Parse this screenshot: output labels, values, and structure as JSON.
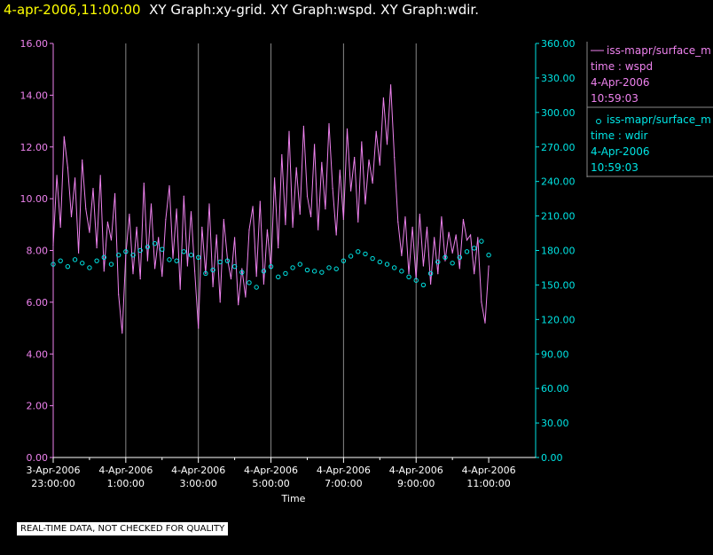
{
  "header": {
    "timestamp": "4-apr-2006,11:00:00",
    "graph_titles": "XY Graph:xy-grid.  XY Graph:wspd.  XY Graph:wdir."
  },
  "notice": "REAL-TIME DATA, NOT CHECKED FOR QUALITY",
  "colors": {
    "wspd": "#ee82ee",
    "wdir": "#00e5e5",
    "grid": "#ffffff",
    "axis_left": "#ee82ee",
    "axis_right": "#00e5e5"
  },
  "legend": [
    {
      "symbol": "line",
      "source": "iss-mapr/surface_m",
      "var": "time : wspd",
      "date": "4-Apr-2006",
      "time": "10:59:03",
      "color": "#ee82ee"
    },
    {
      "symbol": "circle",
      "source": "iss-mapr/surface_m",
      "var": "time : wdir",
      "date": "4-Apr-2006",
      "time": "10:59:03",
      "color": "#00e5e5"
    }
  ],
  "chart_data": {
    "type": "line",
    "xlabel": "Time",
    "x_range_hours": [
      -1,
      12
    ],
    "x_ticks": [
      {
        "h": -1,
        "l1": "3-Apr-2006",
        "l2": "23:00:00"
      },
      {
        "h": 1,
        "l1": "4-Apr-2006",
        "l2": "1:00:00"
      },
      {
        "h": 3,
        "l1": "4-Apr-2006",
        "l2": "3:00:00"
      },
      {
        "h": 5,
        "l1": "4-Apr-2006",
        "l2": "5:00:00"
      },
      {
        "h": 7,
        "l1": "4-Apr-2006",
        "l2": "7:00:00"
      },
      {
        "h": 9,
        "l1": "4-Apr-2006",
        "l2": "9:00:00"
      },
      {
        "h": 11,
        "l1": "4-Apr-2006",
        "l2": "11:00:00"
      }
    ],
    "left_axis": {
      "ylim": [
        0,
        16
      ],
      "ticks": [
        "0.00",
        "2.00",
        "4.00",
        "6.00",
        "8.00",
        "10.00",
        "12.00",
        "14.00",
        "16.00"
      ]
    },
    "right_axis": {
      "ylim": [
        0,
        360
      ],
      "ticks": [
        "0.00",
        "30.00",
        "60.00",
        "90.00",
        "120.00",
        "150.00",
        "180.00",
        "210.00",
        "240.00",
        "270.00",
        "300.00",
        "330.00",
        "360.00"
      ]
    },
    "series": [
      {
        "axis": "left",
        "hours": [
          -1.0,
          -0.9,
          -0.8,
          -0.7,
          -0.6,
          -0.5,
          -0.4,
          -0.3,
          -0.2,
          -0.1,
          0.0,
          0.1,
          0.2,
          0.3,
          0.4,
          0.5,
          0.6,
          0.7,
          0.8,
          0.9,
          1.0,
          1.1,
          1.2,
          1.3,
          1.4,
          1.5,
          1.6,
          1.7,
          1.8,
          1.9,
          2.0,
          2.1,
          2.2,
          2.3,
          2.4,
          2.5,
          2.6,
          2.7,
          2.8,
          2.9,
          3.0,
          3.1,
          3.2,
          3.3,
          3.4,
          3.5,
          3.6,
          3.7,
          3.8,
          3.9,
          4.0,
          4.1,
          4.2,
          4.3,
          4.4,
          4.5,
          4.6,
          4.7,
          4.8,
          4.9,
          5.0,
          5.1,
          5.2,
          5.3,
          5.4,
          5.5,
          5.6,
          5.7,
          5.8,
          5.9,
          6.0,
          6.1,
          6.2,
          6.3,
          6.4,
          6.5,
          6.6,
          6.7,
          6.8,
          6.9,
          7.0,
          7.1,
          7.2,
          7.3,
          7.4,
          7.5,
          7.6,
          7.7,
          7.8,
          7.9,
          8.0,
          8.1,
          8.2,
          8.3,
          8.4,
          8.5,
          8.6,
          8.7,
          8.8,
          8.9,
          9.0,
          9.1,
          9.2,
          9.3,
          9.4,
          9.5,
          9.6,
          9.7,
          9.8,
          9.9,
          10.0,
          10.1,
          10.2,
          10.3,
          10.4,
          10.5,
          10.6,
          10.7,
          10.8,
          10.9,
          11.0
        ],
        "values": [
          8.2,
          10.9,
          8.9,
          12.4,
          11.2,
          9.3,
          10.8,
          7.9,
          11.5,
          9.6,
          8.7,
          10.4,
          8.1,
          10.9,
          7.2,
          9.1,
          8.4,
          10.2,
          6.3,
          4.8,
          7.8,
          9.4,
          7.1,
          8.9,
          6.9,
          10.6,
          7.6,
          9.8,
          7.3,
          8.5,
          7.0,
          9.2,
          10.5,
          7.7,
          9.6,
          6.5,
          10.1,
          7.4,
          9.5,
          7.2,
          5.0,
          8.9,
          7.1,
          9.8,
          6.6,
          8.6,
          6.0,
          9.2,
          7.7,
          6.9,
          8.5,
          5.9,
          7.3,
          6.2,
          8.8,
          9.7,
          7.0,
          9.9,
          6.7,
          8.8,
          7.3,
          10.8,
          8.1,
          11.7,
          9.0,
          12.6,
          8.9,
          11.2,
          9.4,
          12.8,
          10.1,
          9.3,
          12.1,
          8.8,
          11.4,
          9.6,
          12.9,
          10.4,
          8.6,
          11.1,
          9.2,
          12.7,
          10.3,
          11.6,
          9.1,
          12.2,
          9.8,
          11.5,
          10.6,
          12.6,
          11.3,
          13.9,
          12.1,
          14.4,
          11.6,
          9.1,
          7.8,
          9.3,
          7.1,
          8.9,
          6.9,
          9.4,
          7.4,
          8.9,
          6.7,
          8.5,
          7.1,
          9.3,
          7.6,
          8.7,
          7.9,
          8.6,
          7.3,
          9.2,
          8.4,
          8.6,
          7.1,
          8.5,
          6.0,
          5.2,
          7.4
        ]
      },
      {
        "axis": "right",
        "hours": [
          -1.0,
          -0.8,
          -0.6,
          -0.4,
          -0.2,
          0.0,
          0.2,
          0.4,
          0.6,
          0.8,
          1.0,
          1.2,
          1.4,
          1.6,
          1.8,
          2.0,
          2.2,
          2.4,
          2.6,
          2.8,
          3.0,
          3.2,
          3.4,
          3.6,
          3.8,
          4.0,
          4.2,
          4.4,
          4.6,
          4.8,
          5.0,
          5.2,
          5.4,
          5.6,
          5.8,
          6.0,
          6.2,
          6.4,
          6.6,
          6.8,
          7.0,
          7.2,
          7.4,
          7.6,
          7.8,
          8.0,
          8.2,
          8.4,
          8.6,
          8.8,
          9.0,
          9.2,
          9.4,
          9.6,
          9.8,
          10.0,
          10.2,
          10.4,
          10.6,
          10.8,
          11.0
        ],
        "values": [
          168,
          171,
          166,
          172,
          169,
          165,
          171,
          174,
          168,
          176,
          179,
          176,
          180,
          183,
          186,
          181,
          172,
          171,
          179,
          176,
          174,
          160,
          163,
          170,
          171,
          166,
          161,
          152,
          148,
          162,
          166,
          157,
          160,
          165,
          168,
          163,
          162,
          161,
          165,
          164,
          171,
          175,
          179,
          177,
          173,
          170,
          168,
          165,
          162,
          157,
          154,
          150,
          160,
          170,
          174,
          169,
          174,
          179,
          182,
          188,
          176
        ]
      }
    ]
  }
}
